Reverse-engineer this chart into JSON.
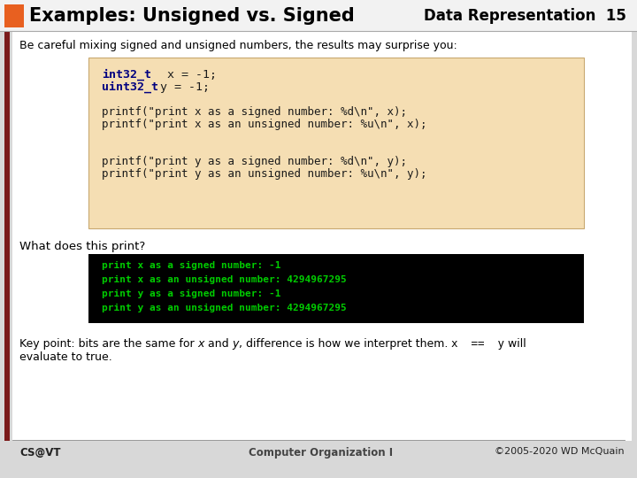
{
  "title_left": "Examples: Unsigned vs. Signed",
  "title_right": "Data Representation  15",
  "orange_rect_color": "#E86020",
  "dark_red_bar_color": "#7A1A1A",
  "slide_bg": "#D8D8D8",
  "content_bg": "#FFFFFF",
  "code_bg": "#F5DEB3",
  "output_bg": "#000000",
  "body_text": "Be careful mixing signed and unsigned numbers, the results may surprise you:",
  "what_does": "What does this print?",
  "output_lines": [
    "print x as a signed number: -1",
    "print x as an unsigned number: 4294967295",
    "print y as a signed number: -1",
    "print y as an unsigned number: 4294967295"
  ],
  "key_line2": "evaluate to true.",
  "footer_left": "CS@VT",
  "footer_center": "Computer Organization I",
  "footer_right": "©2005-2020 WD McQuain"
}
